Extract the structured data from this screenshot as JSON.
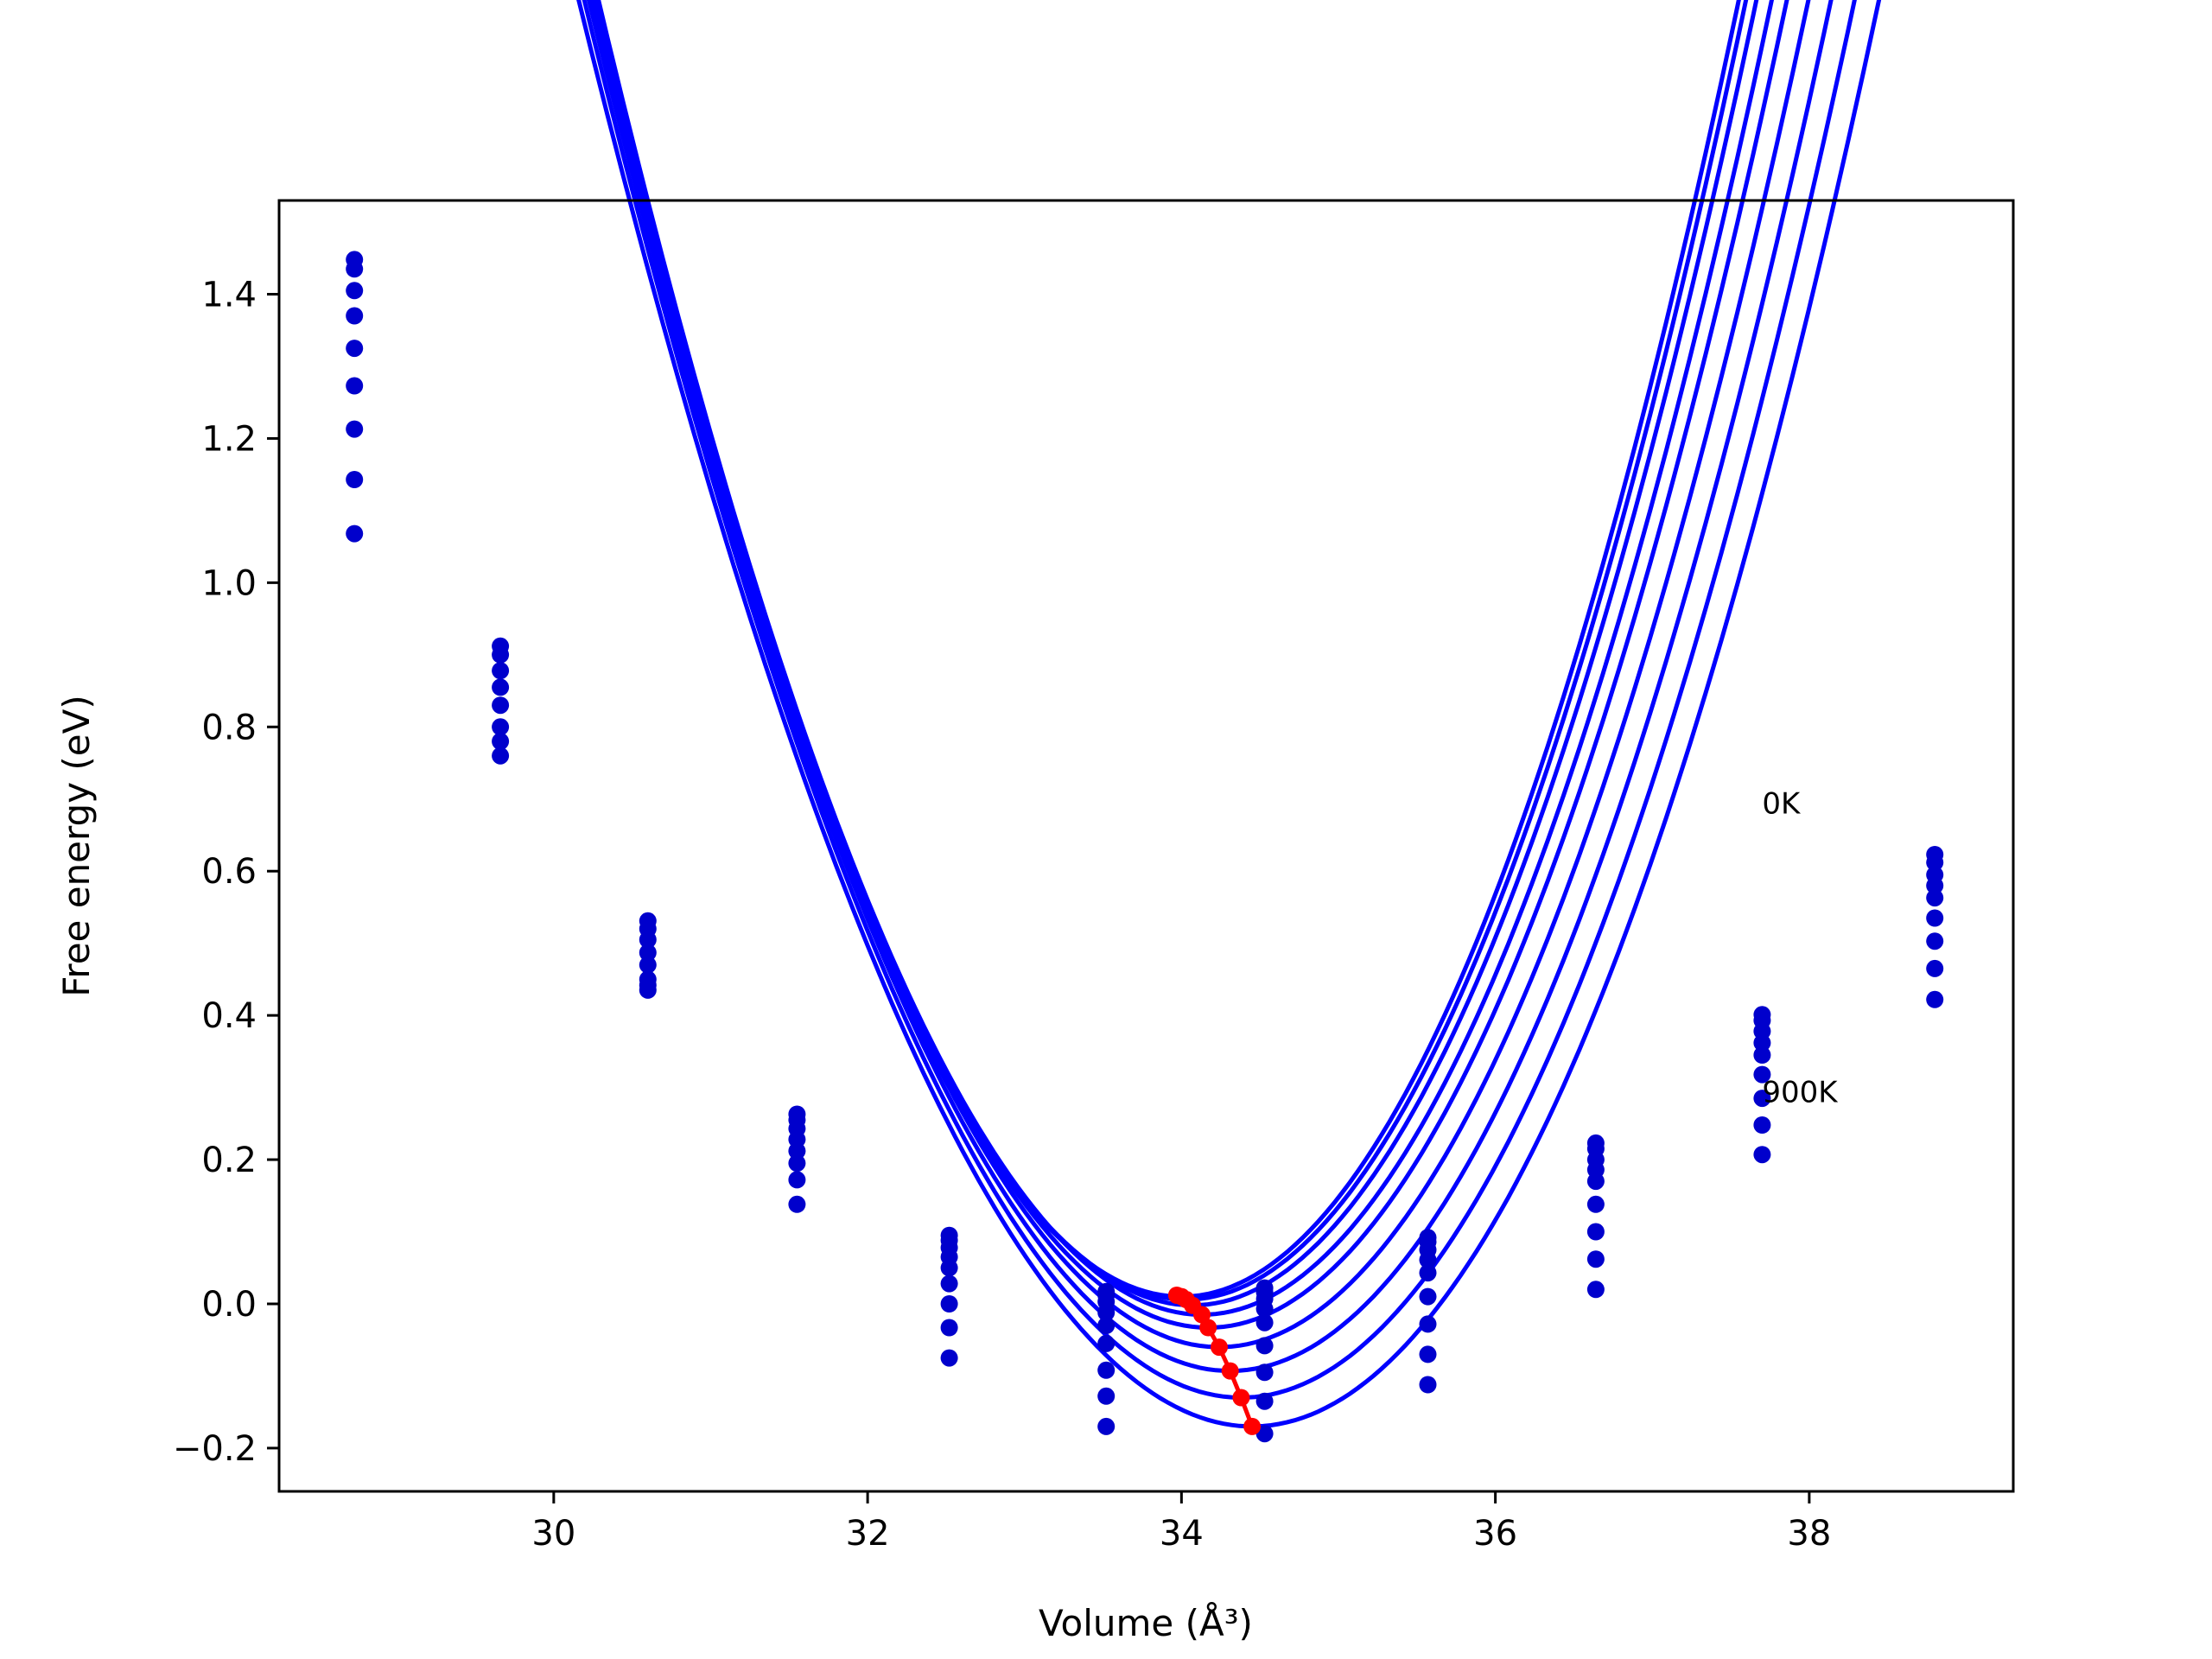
{
  "chart_data": {
    "type": "scatter",
    "title": "",
    "xlabel": "Volume (Å³)",
    "ylabel": "Free energy (eV)",
    "xlim": [
      28.25,
      39.3
    ],
    "ylim": [
      -0.26,
      1.53
    ],
    "grid": false,
    "legend": "none",
    "xticks": [
      30,
      32,
      34,
      36,
      38
    ],
    "xtick_labels": [
      "30",
      "32",
      "34",
      "36",
      "38"
    ],
    "yticks": [
      -0.2,
      0.0,
      0.2,
      0.4,
      0.6,
      0.8,
      1.0,
      1.2,
      1.4
    ],
    "ytick_labels": [
      "−0.2",
      "0.0",
      "0.2",
      "0.4",
      "0.6",
      "0.8",
      "1.0",
      "1.2",
      "1.4"
    ],
    "annotations": [
      {
        "text": "0K",
        "x": 37.7,
        "y": 0.68
      },
      {
        "text": "900K",
        "x": 37.7,
        "y": 0.28
      }
    ],
    "colors": {
      "curves": "#0000ff",
      "points": "#0000cc",
      "minimum_path": "#ff0000"
    },
    "x": [
      28.73,
      29.66,
      30.6,
      31.55,
      32.52,
      33.52,
      34.53,
      35.57,
      36.64,
      37.7,
      38.8
    ],
    "series": [
      {
        "fit": {
          "vmin": 34.0,
          "emin": 0.01,
          "a": 0.1355,
          "b": 0.002
        },
        "values": [
          1.448,
          0.912,
          0.531,
          0.263,
          0.095,
          0.017,
          0.022,
          0.092,
          0.223,
          0.401,
          0.623
        ]
      },
      {
        "fit": {
          "vmin": 34.03,
          "emin": 0.006,
          "a": 0.1345,
          "b": 0.002
        },
        "values": [
          1.435,
          0.9,
          0.52,
          0.255,
          0.088,
          0.012,
          0.016,
          0.086,
          0.215,
          0.393,
          0.612
        ]
      },
      {
        "fit": {
          "vmin": 34.07,
          "emin": -0.002,
          "a": 0.133,
          "b": 0.002
        },
        "values": [
          1.405,
          0.878,
          0.505,
          0.243,
          0.078,
          0.003,
          0.007,
          0.075,
          0.2,
          0.378,
          0.595
        ]
      },
      {
        "fit": {
          "vmin": 34.13,
          "emin": -0.015,
          "a": 0.131,
          "b": 0.002
        },
        "values": [
          1.37,
          0.855,
          0.487,
          0.228,
          0.065,
          -0.012,
          -0.007,
          0.061,
          0.186,
          0.362,
          0.58
        ]
      },
      {
        "fit": {
          "vmin": 34.17,
          "emin": -0.033,
          "a": 0.128,
          "b": 0.002
        },
        "values": [
          1.325,
          0.83,
          0.47,
          0.212,
          0.05,
          -0.03,
          -0.026,
          0.043,
          0.17,
          0.345,
          0.563
        ]
      },
      {
        "fit": {
          "vmin": 34.24,
          "emin": -0.06,
          "a": 0.125,
          "b": 0.002
        },
        "values": [
          1.273,
          0.8,
          0.45,
          0.195,
          0.028,
          -0.055,
          -0.058,
          0.01,
          0.138,
          0.318,
          0.535
        ]
      },
      {
        "fit": {
          "vmin": 34.31,
          "emin": -0.093,
          "a": 0.122,
          "b": 0.002
        },
        "values": [
          1.213,
          0.78,
          0.442,
          0.172,
          0.0,
          -0.092,
          -0.095,
          -0.028,
          0.1,
          0.285,
          0.503
        ]
      },
      {
        "fit": {
          "vmin": 34.38,
          "emin": -0.13,
          "a": 0.119,
          "b": 0.002
        },
        "values": [
          1.143,
          0.76,
          0.435,
          0.138,
          -0.033,
          -0.128,
          -0.135,
          -0.07,
          0.062,
          0.248,
          0.465
        ]
      },
      {
        "fit": {
          "vmin": 34.45,
          "emin": -0.17,
          "a": 0.116,
          "b": 0.002
        },
        "values": [
          1.068,
          null,
          null,
          null,
          -0.075,
          -0.17,
          -0.18,
          -0.112,
          0.02,
          0.207,
          0.422
        ]
      }
    ],
    "minimum_path": {
      "x": [
        33.97,
        34.0,
        34.03,
        34.07,
        34.13,
        34.17,
        34.24,
        34.31,
        34.38,
        34.45
      ],
      "y": [
        0.012,
        0.01,
        0.006,
        -0.002,
        -0.015,
        -0.033,
        -0.06,
        -0.093,
        -0.13,
        -0.17
      ]
    }
  }
}
